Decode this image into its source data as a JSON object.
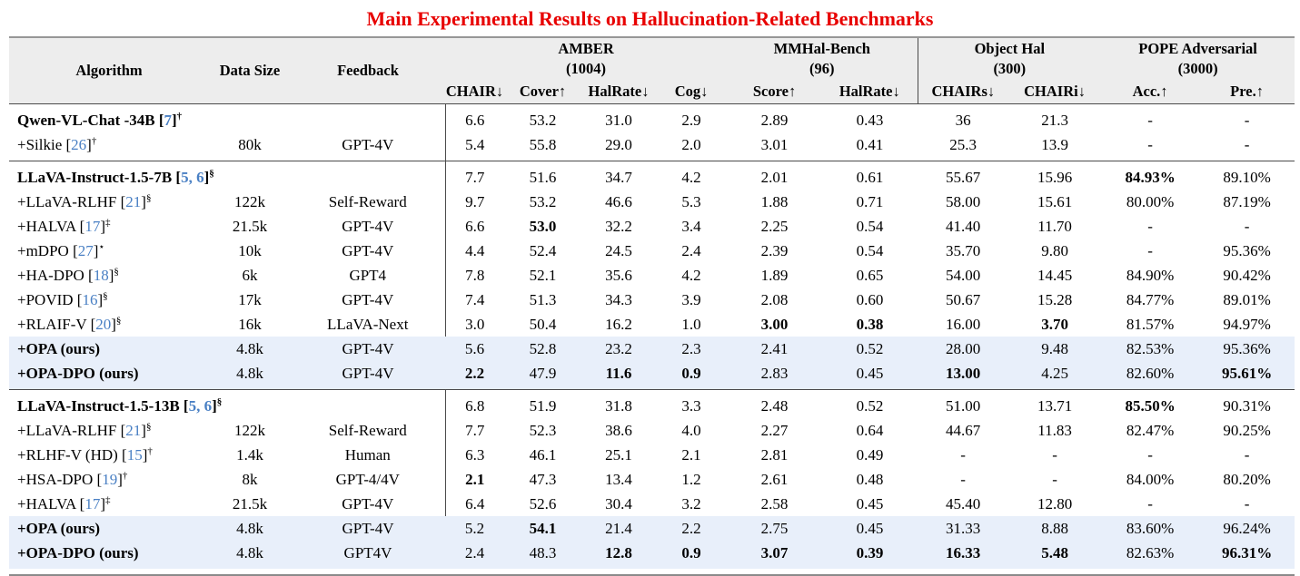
{
  "title": "Main Experimental Results on Hallucination-Related Benchmarks",
  "colors": {
    "title_red": "#e80000",
    "citation_blue": "#4a80c4",
    "highlight_row": "#e8effa",
    "header_bg": "#ededed"
  },
  "table": {
    "col_headers": [
      "Algorithm",
      "Data Size",
      "Feedback"
    ],
    "groups": [
      {
        "name": "AMBER",
        "count": "(1004)",
        "metrics": [
          "CHAIR↓",
          "Cover↑",
          "HalRate↓",
          "Cog↓"
        ]
      },
      {
        "name": "MMHal-Bench",
        "count": "(96)",
        "metrics": [
          "Score↑",
          "HalRate↓"
        ]
      },
      {
        "name": "Object Hal",
        "count": "(300)",
        "metrics": [
          "CHAIRs↓",
          "CHAIRi↓"
        ]
      },
      {
        "name": "POPE Adversarial",
        "count": "(3000)",
        "metrics": [
          "Acc.↑",
          "Pre.↑"
        ]
      }
    ],
    "sections": [
      {
        "rows": [
          {
            "algo": {
              "text": "Qwen-VL-Chat -34B",
              "cite": "7",
              "sup": "†",
              "bold": true
            },
            "data_size": "",
            "feedback": "",
            "values": [
              "6.6",
              "53.2",
              "31.0",
              "2.9",
              "2.89",
              "0.43",
              "36",
              "21.3",
              "-",
              "-"
            ],
            "bold_values": [],
            "highlight": false
          },
          {
            "algo": {
              "text": "+Silkie",
              "cite": "26",
              "sup": "†",
              "bold": false
            },
            "data_size": "80k",
            "feedback": "GPT-4V",
            "values": [
              "5.4",
              "55.8",
              "29.0",
              "2.0",
              "3.01",
              "0.41",
              "25.3",
              "13.9",
              "-",
              "-"
            ],
            "bold_values": [],
            "highlight": false
          }
        ]
      },
      {
        "rows": [
          {
            "algo": {
              "text": "LLaVA-Instruct-1.5-7B",
              "cite": "5, 6",
              "sup": "§",
              "bold": true
            },
            "data_size": "",
            "feedback": "",
            "values": [
              "7.7",
              "51.6",
              "34.7",
              "4.2",
              "2.01",
              "0.61",
              "55.67",
              "15.96",
              "84.93%",
              "89.10%"
            ],
            "bold_values": [
              8
            ],
            "highlight": false
          },
          {
            "algo": {
              "text": "+LLaVA-RLHF",
              "cite": "21",
              "sup": "§",
              "bold": false
            },
            "data_size": "122k",
            "feedback": "Self-Reward",
            "values": [
              "9.7",
              "53.2",
              "46.6",
              "5.3",
              "1.88",
              "0.71",
              "58.00",
              "15.61",
              "80.00%",
              "87.19%"
            ],
            "bold_values": [],
            "highlight": false
          },
          {
            "algo": {
              "text": "+HALVA",
              "cite": "17",
              "sup": "‡",
              "bold": false
            },
            "data_size": "21.5k",
            "feedback": "GPT-4V",
            "values": [
              "6.6",
              "53.0",
              "32.2",
              "3.4",
              "2.25",
              "0.54",
              "41.40",
              "11.70",
              "-",
              "-"
            ],
            "bold_values": [
              1
            ],
            "highlight": false
          },
          {
            "algo": {
              "text": "+mDPO",
              "cite": "27",
              "sup": "⋆",
              "bold": false
            },
            "data_size": "10k",
            "feedback": "GPT-4V",
            "values": [
              "4.4",
              "52.4",
              "24.5",
              "2.4",
              "2.39",
              "0.54",
              "35.70",
              "9.80",
              "-",
              "95.36%"
            ],
            "bold_values": [],
            "highlight": false
          },
          {
            "algo": {
              "text": "+HA-DPO",
              "cite": "18",
              "sup": "§",
              "bold": false
            },
            "data_size": "6k",
            "feedback": "GPT4",
            "values": [
              "7.8",
              "52.1",
              "35.6",
              "4.2",
              "1.89",
              "0.65",
              "54.00",
              "14.45",
              "84.90%",
              "90.42%"
            ],
            "bold_values": [],
            "highlight": false
          },
          {
            "algo": {
              "text": "+POVID",
              "cite": "16",
              "sup": "§",
              "bold": false
            },
            "data_size": "17k",
            "feedback": "GPT-4V",
            "values": [
              "7.4",
              "51.3",
              "34.3",
              "3.9",
              "2.08",
              "0.60",
              "50.67",
              "15.28",
              "84.77%",
              "89.01%"
            ],
            "bold_values": [],
            "highlight": false
          },
          {
            "algo": {
              "text": "+RLAIF-V",
              "cite": "20",
              "sup": "§",
              "bold": false
            },
            "data_size": "16k",
            "feedback": "LLaVA-Next",
            "values": [
              "3.0",
              "50.4",
              "16.2",
              "1.0",
              "3.00",
              "0.38",
              "16.00",
              "3.70",
              "81.57%",
              "94.97%"
            ],
            "bold_values": [
              4,
              5,
              7
            ],
            "highlight": false
          },
          {
            "algo": {
              "text": "+OPA (ours)",
              "cite": "",
              "sup": "",
              "bold": true
            },
            "data_size": "4.8k",
            "feedback": "GPT-4V",
            "values": [
              "5.6",
              "52.8",
              "23.2",
              "2.3",
              "2.41",
              "0.52",
              "28.00",
              "9.48",
              "82.53%",
              "95.36%"
            ],
            "bold_values": [],
            "highlight": true
          },
          {
            "algo": {
              "text": "+OPA-DPO (ours)",
              "cite": "",
              "sup": "",
              "bold": true
            },
            "data_size": "4.8k",
            "feedback": "GPT-4V",
            "values": [
              "2.2",
              "47.9",
              "11.6",
              "0.9",
              "2.83",
              "0.45",
              "13.00",
              "4.25",
              "82.60%",
              "95.61%"
            ],
            "bold_values": [
              0,
              2,
              3,
              6,
              9
            ],
            "highlight": true
          }
        ]
      },
      {
        "rows": [
          {
            "algo": {
              "text": "LLaVA-Instruct-1.5-13B",
              "cite": "5, 6",
              "sup": "§",
              "bold": true
            },
            "data_size": "",
            "feedback": "",
            "values": [
              "6.8",
              "51.9",
              "31.8",
              "3.3",
              "2.48",
              "0.52",
              "51.00",
              "13.71",
              "85.50%",
              "90.31%"
            ],
            "bold_values": [
              8
            ],
            "highlight": false
          },
          {
            "algo": {
              "text": "+LLaVA-RLHF",
              "cite": "21",
              "sup": "§",
              "bold": false
            },
            "data_size": "122k",
            "feedback": "Self-Reward",
            "values": [
              "7.7",
              "52.3",
              "38.6",
              "4.0",
              "2.27",
              "0.64",
              "44.67",
              "11.83",
              "82.47%",
              "90.25%"
            ],
            "bold_values": [],
            "highlight": false
          },
          {
            "algo": {
              "text": "+RLHF-V (HD)",
              "cite": "15",
              "sup": "†",
              "bold": false
            },
            "data_size": "1.4k",
            "feedback": "Human",
            "values": [
              "6.3",
              "46.1",
              "25.1",
              "2.1",
              "2.81",
              "0.49",
              "-",
              "-",
              "-",
              "-"
            ],
            "bold_values": [],
            "highlight": false
          },
          {
            "algo": {
              "text": "+HSA-DPO",
              "cite": "19",
              "sup": "†",
              "bold": false
            },
            "data_size": "8k",
            "feedback": "GPT-4/4V",
            "values": [
              "2.1",
              "47.3",
              "13.4",
              "1.2",
              "2.61",
              "0.48",
              "-",
              "-",
              "84.00%",
              "80.20%"
            ],
            "bold_values": [
              0
            ],
            "highlight": false
          },
          {
            "algo": {
              "text": "+HALVA",
              "cite": "17",
              "sup": "‡",
              "bold": false
            },
            "data_size": "21.5k",
            "feedback": "GPT-4V",
            "values": [
              "6.4",
              "52.6",
              "30.4",
              "3.2",
              "2.58",
              "0.45",
              "45.40",
              "12.80",
              "-",
              "-"
            ],
            "bold_values": [],
            "highlight": false
          },
          {
            "algo": {
              "text": "+OPA (ours)",
              "cite": "",
              "sup": "",
              "bold": true
            },
            "data_size": "4.8k",
            "feedback": "GPT-4V",
            "values": [
              "5.2",
              "54.1",
              "21.4",
              "2.2",
              "2.75",
              "0.45",
              "31.33",
              "8.88",
              "83.60%",
              "96.24%"
            ],
            "bold_values": [
              1
            ],
            "highlight": true
          },
          {
            "algo": {
              "text": "+OPA-DPO (ours)",
              "cite": "",
              "sup": "",
              "bold": true
            },
            "data_size": "4.8k",
            "feedback": "GPT4V",
            "values": [
              "2.4",
              "48.3",
              "12.8",
              "0.9",
              "3.07",
              "0.39",
              "16.33",
              "5.48",
              "82.63%",
              "96.31%"
            ],
            "bold_values": [
              2,
              3,
              4,
              5,
              6,
              7,
              9
            ],
            "highlight": true
          }
        ]
      }
    ]
  }
}
